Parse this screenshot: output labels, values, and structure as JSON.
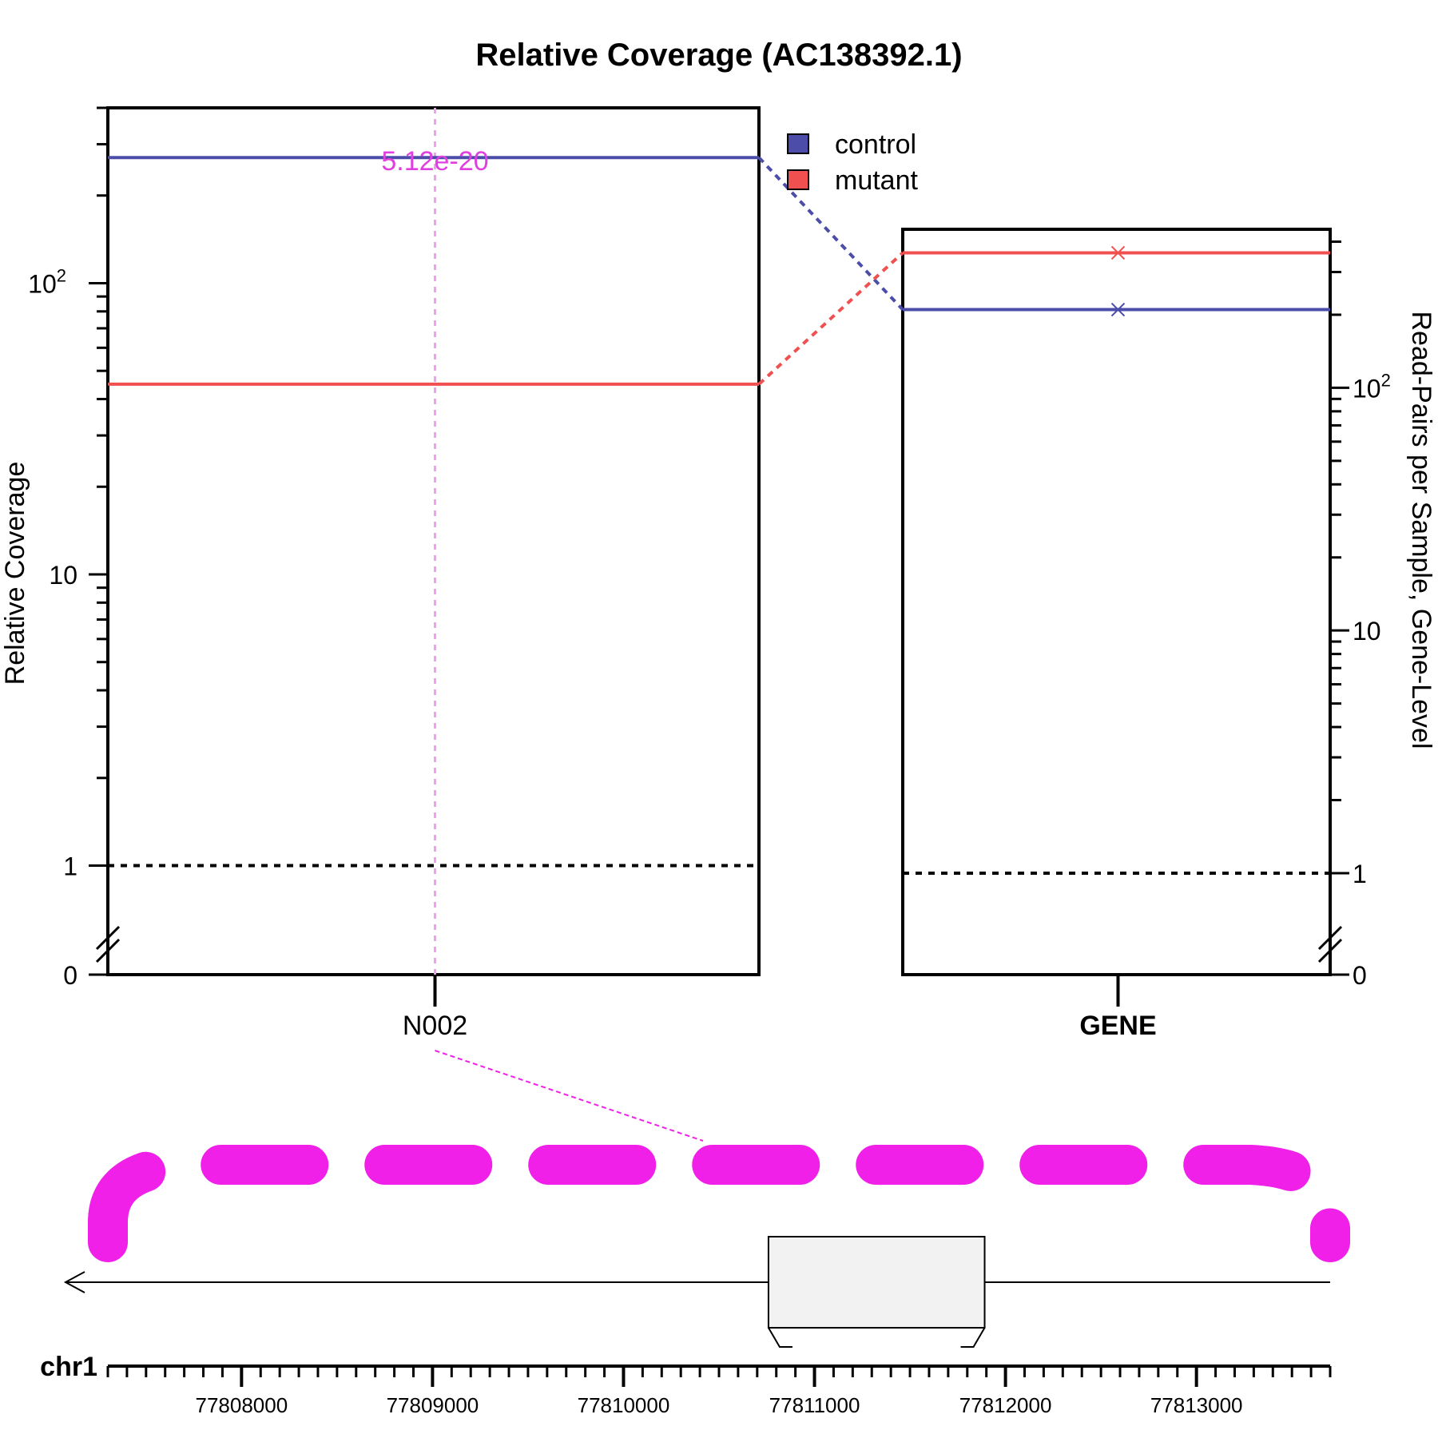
{
  "chart_data": {
    "type": "line",
    "title": "Relative Coverage (AC138392.1)",
    "colors": {
      "control": "#4b4da8",
      "mutant": "#f05050",
      "highlight": "#f020e8",
      "pvalue_text": "#e040e0"
    },
    "legend": {
      "placement": "top-center",
      "entries": [
        "control",
        "mutant"
      ]
    },
    "left_panel": {
      "ylabel": "Relative Coverage",
      "yscale": "log",
      "ylim": [
        0.7,
        400
      ],
      "y_ticks": [
        {
          "value": 100,
          "base": "10",
          "exp": "2"
        },
        {
          "value": 10,
          "label": "10"
        },
        {
          "value": 1,
          "label": "1"
        }
      ],
      "y_zero_label": "0",
      "reference_line": 1,
      "category": "N002",
      "pvalue_label": "5.12e-20",
      "series": [
        {
          "name": "control",
          "values": [
            270
          ]
        },
        {
          "name": "mutant",
          "values": [
            45
          ]
        }
      ]
    },
    "right_panel": {
      "ylabel": "Read-Pairs per Sample, Gene-Level",
      "yscale": "log",
      "ylim": [
        0.7,
        450
      ],
      "y_ticks": [
        {
          "value": 100,
          "base": "10",
          "exp": "2"
        },
        {
          "value": 10,
          "label": "10"
        },
        {
          "value": 1,
          "label": "1"
        }
      ],
      "y_zero_label": "0",
      "reference_line": 1,
      "category": "GENE",
      "series": [
        {
          "name": "control",
          "values": [
            210
          ]
        },
        {
          "name": "mutant",
          "values": [
            360
          ]
        }
      ]
    },
    "gene_track": {
      "chromosome": "chr1",
      "strand": "-",
      "xlim": [
        77807300,
        77813700
      ],
      "major_ticks": [
        77808000,
        77809000,
        77810000,
        77811000,
        77812000,
        77813000
      ],
      "tick_labels": [
        "77808000",
        "77809000",
        "77810000",
        "77811000",
        "77812000",
        "77813000"
      ],
      "exon": [
        77810780,
        77811870
      ],
      "highlighted_feature": "N002",
      "highlight_range": [
        77807300,
        77813700
      ]
    }
  }
}
